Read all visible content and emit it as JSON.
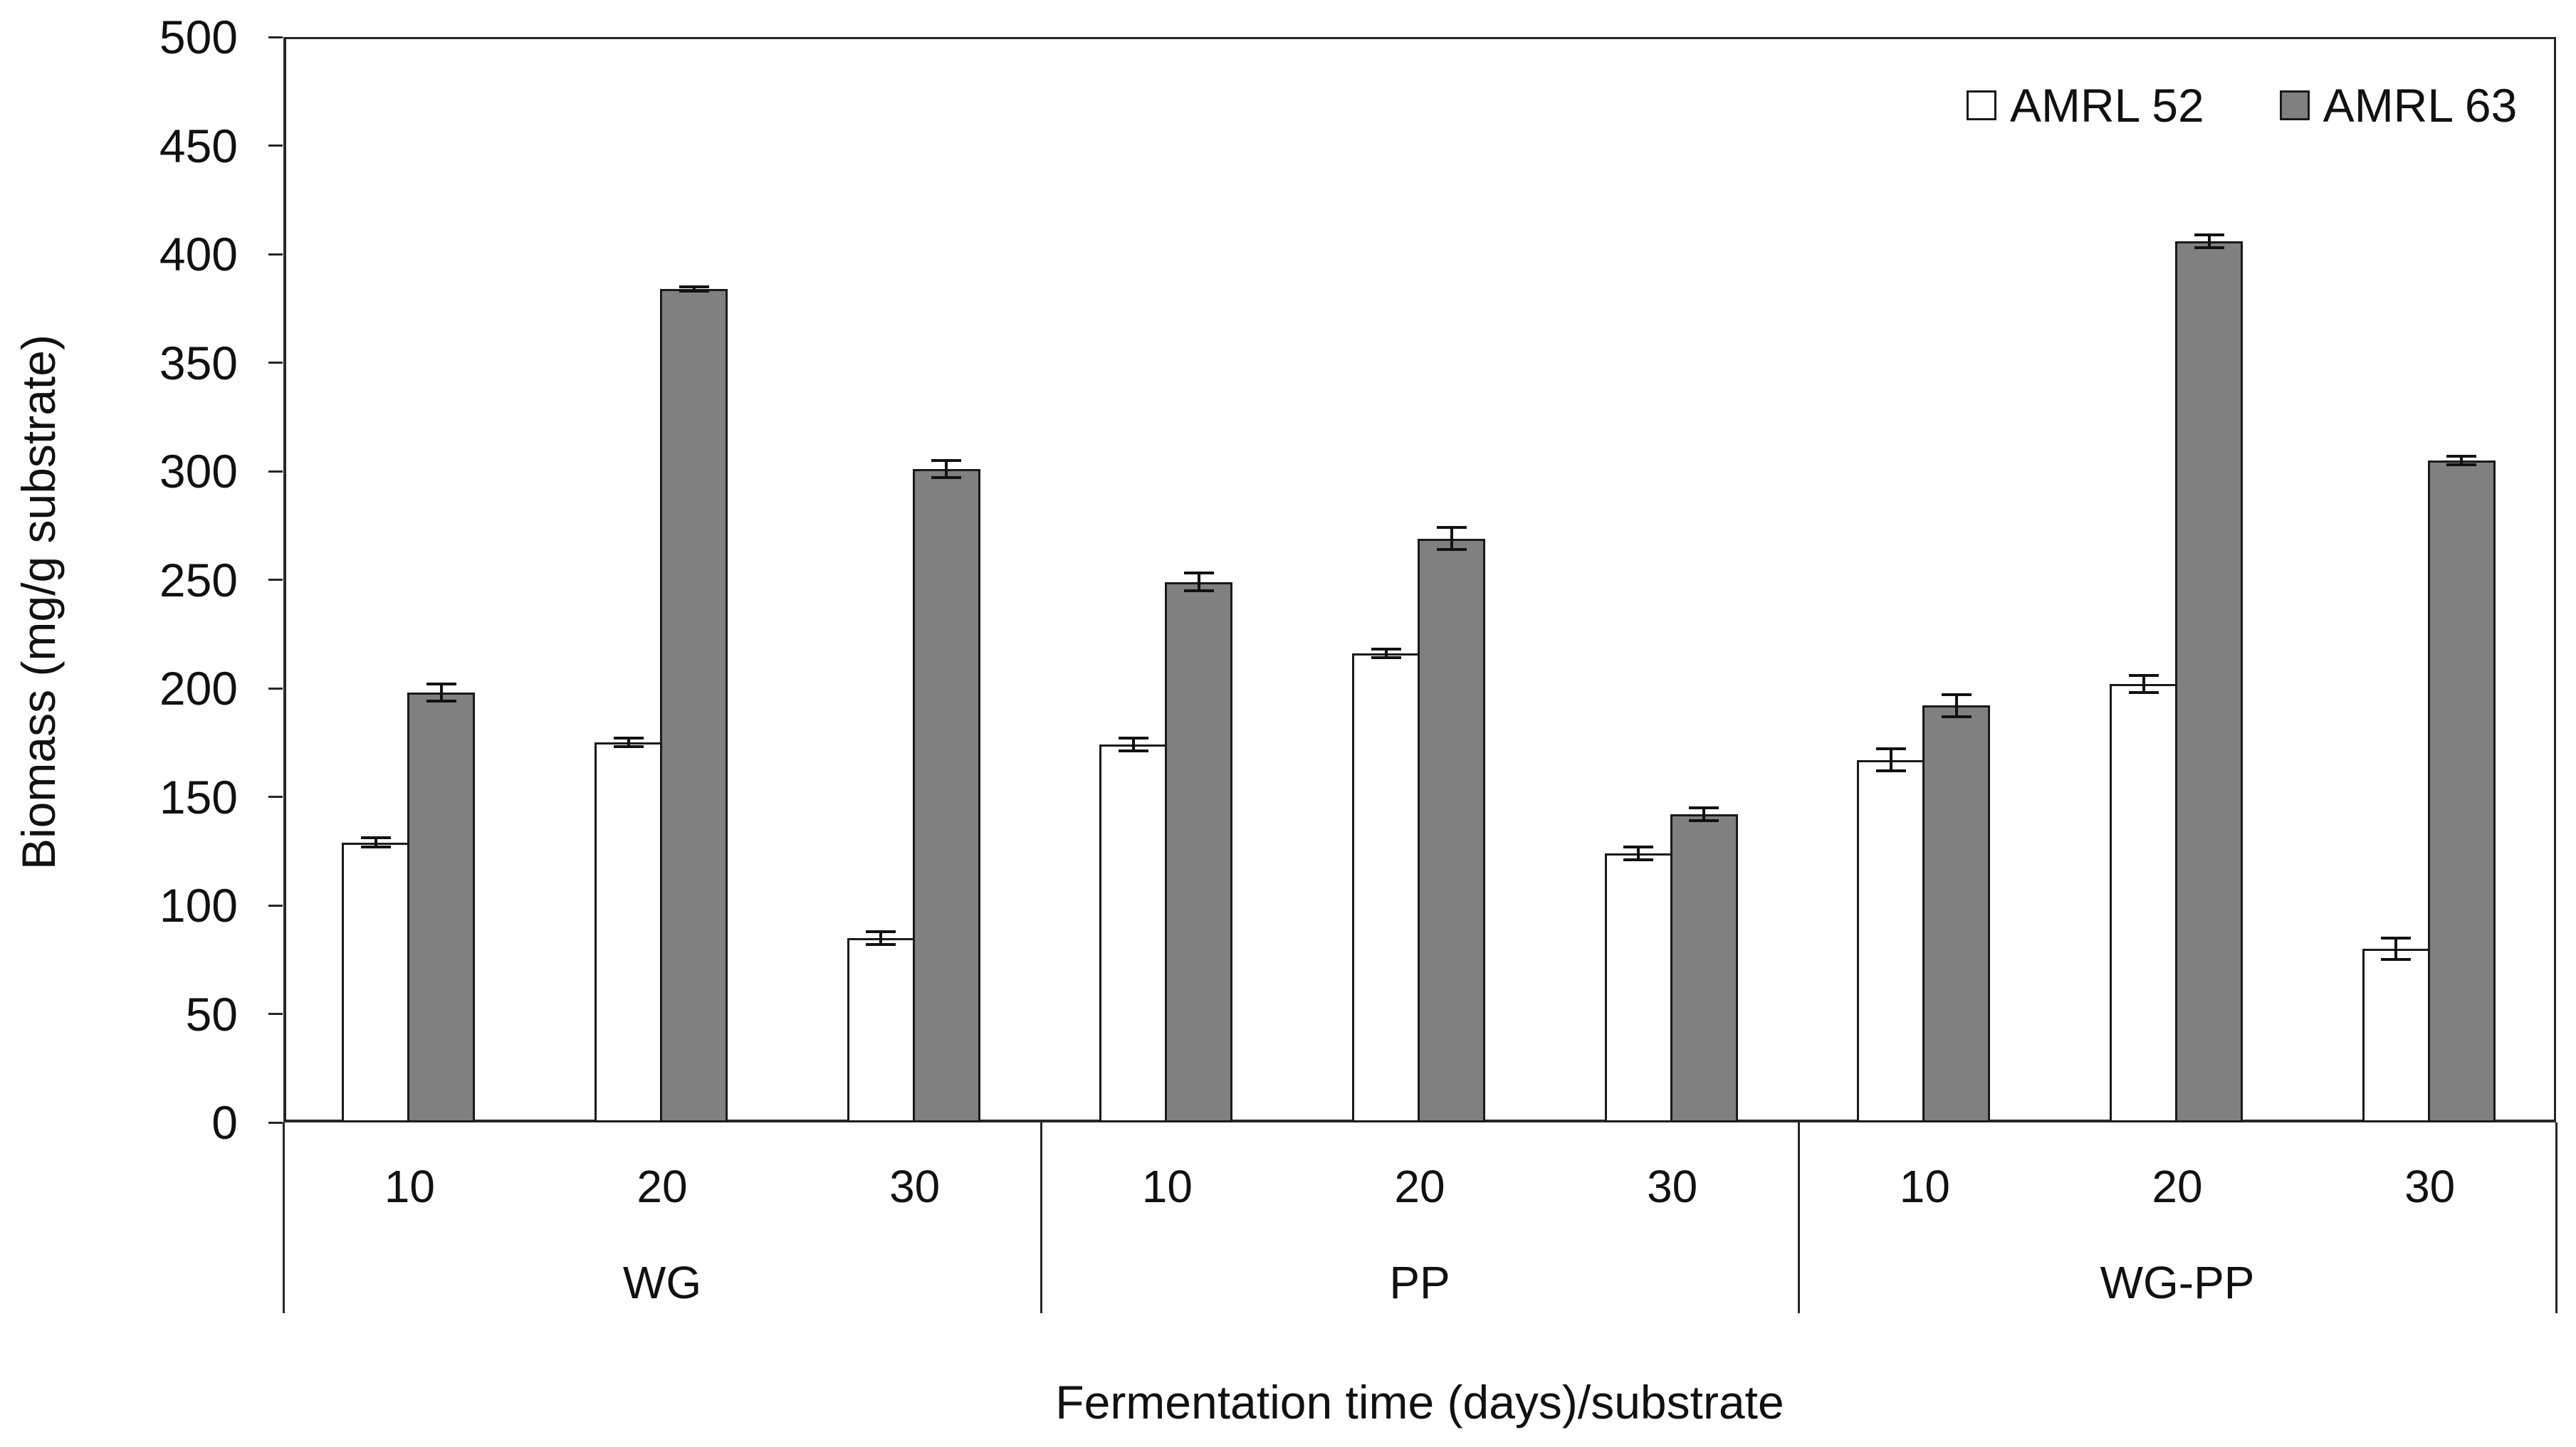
{
  "chart_data": {
    "type": "bar",
    "title": "",
    "ylabel": "Biomass (mg/g substrate)",
    "xlabel": "Fermentation time (days)/substrate",
    "ylim": [
      0,
      500
    ],
    "ytick_step": 50,
    "yticks": [
      "0",
      "50",
      "100",
      "150",
      "200",
      "250",
      "300",
      "350",
      "400",
      "450",
      "500"
    ],
    "grid": false,
    "legend_position": "top-right-inside",
    "groups": [
      {
        "label": "WG",
        "categories": [
          "10",
          "20",
          "30"
        ]
      },
      {
        "label": "PP",
        "categories": [
          "10",
          "20",
          "30"
        ]
      },
      {
        "label": "WG-PP",
        "categories": [
          "10",
          "20",
          "30"
        ]
      }
    ],
    "series": [
      {
        "name": "AMRL 52",
        "fill": "#ffffff",
        "values": [
          129,
          175,
          85,
          174,
          216,
          124,
          167,
          202,
          80
        ],
        "errors": [
          2,
          2,
          3,
          3,
          2,
          3,
          5,
          4,
          5
        ]
      },
      {
        "name": "AMRL 63",
        "fill": "#808080",
        "values": [
          198,
          384,
          301,
          249,
          269,
          142,
          192,
          406,
          305
        ],
        "errors": [
          4,
          1,
          4,
          4,
          5,
          3,
          5,
          3,
          2
        ]
      }
    ]
  },
  "colors": {
    "background": "#ffffff",
    "axis": "#262626",
    "text": "#111111",
    "bar_border": "#1a1a1a",
    "amrl52_fill": "#ffffff",
    "amrl63_fill": "#808080"
  },
  "legend": {
    "items": [
      {
        "label": "AMRL 52",
        "swatch": "white-square"
      },
      {
        "label": "AMRL 63",
        "swatch": "gray-square"
      }
    ]
  }
}
